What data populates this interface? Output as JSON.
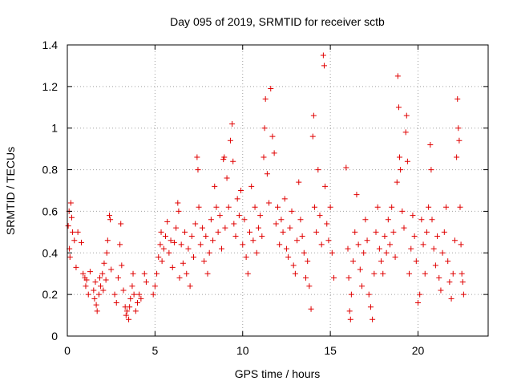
{
  "chart_data": {
    "type": "scatter",
    "title": "Day 095 of 2019, SRMTID for receiver sctb",
    "xlabel": "GPS time / hours",
    "ylabel": "SRMTID / TECUs",
    "xlim": [
      0,
      24
    ],
    "ylim": [
      0,
      1.4
    ],
    "xticks": [
      0,
      5,
      10,
      15,
      20
    ],
    "xtick_labels": [
      "0",
      "5",
      "10",
      "15",
      "20"
    ],
    "yticks": [
      0,
      0.2,
      0.4,
      0.6,
      0.8,
      1.0,
      1.2,
      1.4
    ],
    "ytick_labels": [
      "0",
      "0.2",
      "0.4",
      "0.6",
      "0.8",
      "1",
      "1.2",
      "1.4"
    ],
    "grid": true,
    "marker": "+",
    "color": "#e00000",
    "series": [
      {
        "name": "SRMTID",
        "points": [
          [
            0.05,
            0.53
          ],
          [
            0.1,
            0.6
          ],
          [
            0.12,
            0.42
          ],
          [
            0.15,
            0.38
          ],
          [
            0.2,
            0.64
          ],
          [
            0.25,
            0.57
          ],
          [
            0.3,
            0.5
          ],
          [
            0.4,
            0.46
          ],
          [
            0.5,
            0.33
          ],
          [
            0.6,
            0.5
          ],
          [
            0.8,
            0.45
          ],
          [
            0.9,
            0.3
          ],
          [
            1.0,
            0.28
          ],
          [
            1.05,
            0.24
          ],
          [
            1.1,
            0.27
          ],
          [
            1.2,
            0.2
          ],
          [
            1.3,
            0.31
          ],
          [
            1.5,
            0.22
          ],
          [
            1.55,
            0.18
          ],
          [
            1.6,
            0.26
          ],
          [
            1.65,
            0.15
          ],
          [
            1.7,
            0.12
          ],
          [
            1.8,
            0.2
          ],
          [
            1.85,
            0.28
          ],
          [
            1.9,
            0.24
          ],
          [
            2.0,
            0.3
          ],
          [
            2.05,
            0.22
          ],
          [
            2.1,
            0.35
          ],
          [
            2.2,
            0.27
          ],
          [
            2.25,
            0.4
          ],
          [
            2.3,
            0.46
          ],
          [
            2.4,
            0.58
          ],
          [
            2.45,
            0.56
          ],
          [
            2.5,
            0.32
          ],
          [
            2.7,
            0.2
          ],
          [
            2.8,
            0.16
          ],
          [
            2.9,
            0.28
          ],
          [
            3.0,
            0.44
          ],
          [
            3.05,
            0.54
          ],
          [
            3.1,
            0.34
          ],
          [
            3.2,
            0.22
          ],
          [
            3.3,
            0.14
          ],
          [
            3.35,
            0.1
          ],
          [
            3.4,
            0.12
          ],
          [
            3.5,
            0.08
          ],
          [
            3.55,
            0.14
          ],
          [
            3.6,
            0.18
          ],
          [
            3.7,
            0.24
          ],
          [
            3.75,
            0.3
          ],
          [
            3.8,
            0.2
          ],
          [
            3.9,
            0.12
          ],
          [
            4.0,
            0.16
          ],
          [
            4.1,
            0.2
          ],
          [
            4.2,
            0.18
          ],
          [
            4.4,
            0.3
          ],
          [
            4.5,
            0.26
          ],
          [
            4.9,
            0.2
          ],
          [
            5.0,
            0.24
          ],
          [
            5.1,
            0.3
          ],
          [
            5.2,
            0.38
          ],
          [
            5.3,
            0.44
          ],
          [
            5.35,
            0.5
          ],
          [
            5.4,
            0.36
          ],
          [
            5.5,
            0.42
          ],
          [
            5.6,
            0.48
          ],
          [
            5.7,
            0.55
          ],
          [
            5.8,
            0.4
          ],
          [
            5.9,
            0.46
          ],
          [
            6.0,
            0.33
          ],
          [
            6.1,
            0.45
          ],
          [
            6.2,
            0.52
          ],
          [
            6.3,
            0.64
          ],
          [
            6.35,
            0.6
          ],
          [
            6.4,
            0.28
          ],
          [
            6.5,
            0.44
          ],
          [
            6.6,
            0.35
          ],
          [
            6.7,
            0.5
          ],
          [
            6.8,
            0.3
          ],
          [
            6.9,
            0.42
          ],
          [
            7.0,
            0.24
          ],
          [
            7.1,
            0.48
          ],
          [
            7.2,
            0.38
          ],
          [
            7.3,
            0.54
          ],
          [
            7.4,
            0.86
          ],
          [
            7.45,
            0.8
          ],
          [
            7.5,
            0.62
          ],
          [
            7.6,
            0.44
          ],
          [
            7.7,
            0.52
          ],
          [
            7.8,
            0.36
          ],
          [
            7.9,
            0.48
          ],
          [
            8.0,
            0.3
          ],
          [
            8.1,
            0.4
          ],
          [
            8.2,
            0.56
          ],
          [
            8.3,
            0.46
          ],
          [
            8.4,
            0.72
          ],
          [
            8.5,
            0.62
          ],
          [
            8.6,
            0.5
          ],
          [
            8.7,
            0.58
          ],
          [
            8.8,
            0.42
          ],
          [
            8.9,
            0.85
          ],
          [
            8.95,
            0.86
          ],
          [
            9.0,
            0.52
          ],
          [
            9.1,
            0.76
          ],
          [
            9.2,
            0.62
          ],
          [
            9.3,
            0.94
          ],
          [
            9.4,
            1.02
          ],
          [
            9.45,
            0.84
          ],
          [
            9.5,
            0.54
          ],
          [
            9.6,
            0.48
          ],
          [
            9.7,
            0.66
          ],
          [
            9.8,
            0.58
          ],
          [
            9.9,
            0.7
          ],
          [
            10.0,
            0.44
          ],
          [
            10.1,
            0.56
          ],
          [
            10.2,
            0.38
          ],
          [
            10.3,
            0.3
          ],
          [
            10.4,
            0.5
          ],
          [
            10.5,
            0.72
          ],
          [
            10.6,
            0.46
          ],
          [
            10.7,
            0.62
          ],
          [
            10.8,
            0.4
          ],
          [
            10.9,
            0.52
          ],
          [
            11.0,
            0.58
          ],
          [
            11.1,
            0.48
          ],
          [
            11.2,
            0.86
          ],
          [
            11.25,
            1.0
          ],
          [
            11.3,
            1.14
          ],
          [
            11.4,
            0.78
          ],
          [
            11.5,
            0.64
          ],
          [
            11.6,
            1.19
          ],
          [
            11.7,
            0.96
          ],
          [
            11.8,
            0.88
          ],
          [
            11.9,
            0.54
          ],
          [
            12.0,
            0.62
          ],
          [
            12.1,
            0.44
          ],
          [
            12.2,
            0.56
          ],
          [
            12.3,
            0.5
          ],
          [
            12.4,
            0.66
          ],
          [
            12.5,
            0.42
          ],
          [
            12.6,
            0.38
          ],
          [
            12.7,
            0.52
          ],
          [
            12.8,
            0.6
          ],
          [
            12.9,
            0.34
          ],
          [
            13.0,
            0.3
          ],
          [
            13.1,
            0.46
          ],
          [
            13.2,
            0.74
          ],
          [
            13.3,
            0.56
          ],
          [
            13.4,
            0.48
          ],
          [
            13.5,
            0.4
          ],
          [
            13.6,
            0.28
          ],
          [
            13.7,
            0.36
          ],
          [
            13.8,
            0.24
          ],
          [
            13.9,
            0.13
          ],
          [
            14.0,
            0.96
          ],
          [
            14.05,
            1.06
          ],
          [
            14.1,
            0.62
          ],
          [
            14.2,
            0.5
          ],
          [
            14.3,
            0.8
          ],
          [
            14.4,
            0.58
          ],
          [
            14.5,
            0.44
          ],
          [
            14.6,
            1.35
          ],
          [
            14.65,
            1.3
          ],
          [
            14.7,
            0.72
          ],
          [
            14.8,
            0.54
          ],
          [
            14.9,
            0.46
          ],
          [
            15.0,
            0.62
          ],
          [
            15.1,
            0.4
          ],
          [
            15.2,
            0.28
          ],
          [
            15.9,
            0.81
          ],
          [
            16.0,
            0.42
          ],
          [
            16.05,
            0.28
          ],
          [
            16.1,
            0.12
          ],
          [
            16.15,
            0.08
          ],
          [
            16.2,
            0.2
          ],
          [
            16.3,
            0.36
          ],
          [
            16.4,
            0.5
          ],
          [
            16.5,
            0.68
          ],
          [
            16.6,
            0.44
          ],
          [
            16.7,
            0.32
          ],
          [
            16.8,
            0.24
          ],
          [
            16.9,
            0.4
          ],
          [
            17.0,
            0.56
          ],
          [
            17.1,
            0.46
          ],
          [
            17.2,
            0.2
          ],
          [
            17.3,
            0.14
          ],
          [
            17.4,
            0.08
          ],
          [
            17.5,
            0.3
          ],
          [
            17.6,
            0.5
          ],
          [
            17.7,
            0.62
          ],
          [
            17.8,
            0.42
          ],
          [
            17.9,
            0.36
          ],
          [
            18.0,
            0.3
          ],
          [
            18.1,
            0.48
          ],
          [
            18.2,
            0.4
          ],
          [
            18.3,
            0.56
          ],
          [
            18.4,
            0.44
          ],
          [
            18.5,
            0.62
          ],
          [
            18.6,
            0.5
          ],
          [
            18.7,
            0.38
          ],
          [
            18.8,
            0.74
          ],
          [
            18.85,
            1.25
          ],
          [
            18.9,
            1.1
          ],
          [
            18.95,
            0.86
          ],
          [
            19.0,
            0.8
          ],
          [
            19.1,
            0.6
          ],
          [
            19.2,
            0.52
          ],
          [
            19.3,
            0.98
          ],
          [
            19.35,
            1.06
          ],
          [
            19.4,
            0.84
          ],
          [
            19.5,
            0.3
          ],
          [
            19.6,
            0.42
          ],
          [
            19.7,
            0.58
          ],
          [
            19.8,
            0.48
          ],
          [
            19.9,
            0.36
          ],
          [
            20.0,
            0.16
          ],
          [
            20.1,
            0.2
          ],
          [
            20.2,
            0.56
          ],
          [
            20.3,
            0.44
          ],
          [
            20.4,
            0.3
          ],
          [
            20.5,
            0.5
          ],
          [
            20.6,
            0.62
          ],
          [
            20.7,
            0.92
          ],
          [
            20.75,
            0.8
          ],
          [
            20.8,
            0.56
          ],
          [
            20.9,
            0.42
          ],
          [
            21.0,
            0.34
          ],
          [
            21.1,
            0.48
          ],
          [
            21.2,
            0.28
          ],
          [
            21.3,
            0.22
          ],
          [
            21.4,
            0.4
          ],
          [
            21.5,
            0.5
          ],
          [
            21.6,
            0.62
          ],
          [
            21.7,
            0.36
          ],
          [
            21.8,
            0.26
          ],
          [
            21.9,
            0.18
          ],
          [
            22.0,
            0.3
          ],
          [
            22.1,
            0.46
          ],
          [
            22.2,
            0.86
          ],
          [
            22.25,
            1.14
          ],
          [
            22.3,
            1.0
          ],
          [
            22.35,
            0.94
          ],
          [
            22.4,
            0.62
          ],
          [
            22.45,
            0.44
          ],
          [
            22.5,
            0.3
          ],
          [
            22.55,
            0.26
          ],
          [
            22.6,
            0.2
          ]
        ]
      }
    ]
  }
}
